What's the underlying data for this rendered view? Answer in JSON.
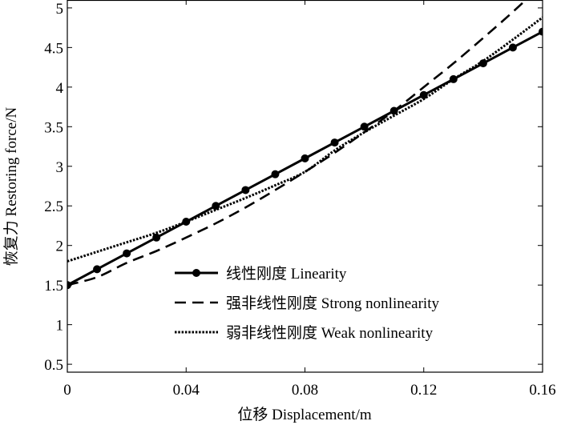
{
  "chart_data": {
    "type": "line",
    "title": "",
    "xlabel": "位移 Displacement/m",
    "ylabel": "恢复力 Restoring force/N",
    "xlim": [
      0,
      0.16
    ],
    "ylim": [
      0.4,
      5.1
    ],
    "xticks": [
      "0",
      "0.04",
      "0.08",
      "0.12",
      "0.16"
    ],
    "xtick_values": [
      0,
      0.04,
      0.08,
      0.12,
      0.16
    ],
    "yticks": [
      "0.5",
      "1",
      "1.5",
      "2",
      "2.5",
      "3",
      "3.5",
      "4",
      "4.5",
      "5"
    ],
    "ytick_values": [
      0.5,
      1,
      1.5,
      2,
      2.5,
      3,
      3.5,
      4,
      4.5,
      5
    ],
    "grid": false,
    "legend_position": "lower-center",
    "x": [
      0,
      0.01,
      0.02,
      0.03,
      0.04,
      0.05,
      0.06,
      0.07,
      0.08,
      0.09,
      0.1,
      0.11,
      0.12,
      0.13,
      0.14,
      0.15,
      0.16
    ],
    "series": [
      {
        "name": "线性刚度 Linearity",
        "style": "solid-marker",
        "values": [
          1.5,
          1.7,
          1.9,
          2.1,
          2.3,
          2.5,
          2.7,
          2.9,
          3.1,
          3.3,
          3.5,
          3.7,
          3.9,
          4.1,
          4.3,
          4.5,
          4.7
        ]
      },
      {
        "name": "强非线性刚度 Strong nonlinearity",
        "style": "dashed",
        "values": [
          1.5,
          1.6,
          1.78,
          1.93,
          2.1,
          2.28,
          2.48,
          2.7,
          2.93,
          3.17,
          3.43,
          3.7,
          4.0,
          4.3,
          4.62,
          4.95,
          5.3
        ]
      },
      {
        "name": "弱非线性刚度 Weak nonlinearity",
        "style": "dotted",
        "values": [
          1.8,
          1.92,
          2.04,
          2.16,
          2.3,
          2.45,
          2.6,
          2.76,
          2.93,
          3.2,
          3.43,
          3.64,
          3.85,
          4.1,
          4.33,
          4.6,
          4.88
        ]
      }
    ]
  }
}
